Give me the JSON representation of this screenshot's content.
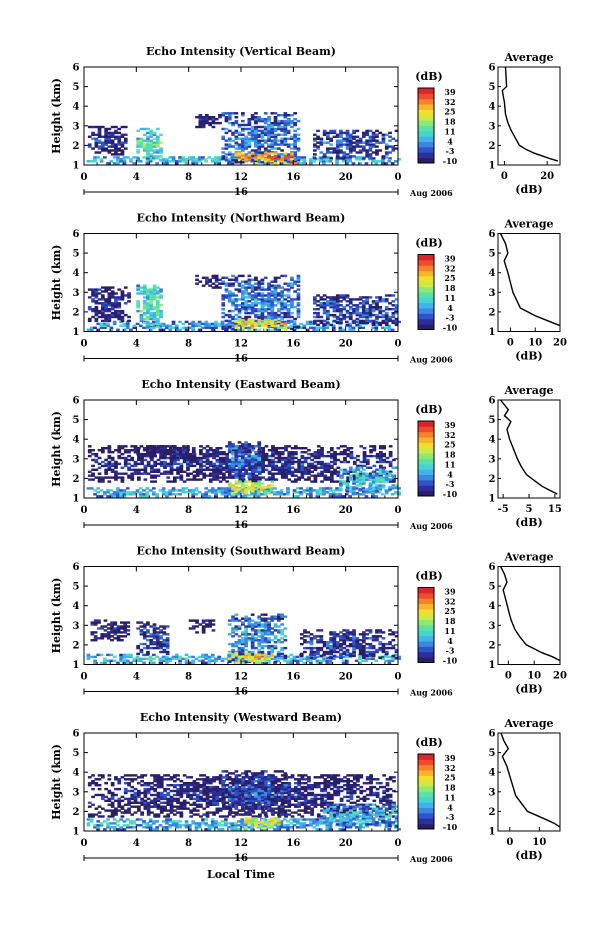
{
  "figure": {
    "date_label": "Aug 2006",
    "day_label": "16",
    "xlabel_bottom": "Local Time",
    "units_label": "(dB)"
  },
  "colorbar": {
    "ticks": [
      39,
      32,
      25,
      18,
      11,
      4,
      -3,
      -10
    ],
    "colors": [
      "#2a1f66",
      "#2b2f9e",
      "#2f53c8",
      "#3b86e0",
      "#3fb4ea",
      "#46d4d2",
      "#5be0a8",
      "#8fe872",
      "#c9ea48",
      "#f2df2b",
      "#f8b42a",
      "#f6832c",
      "#ee4b2f",
      "#d8262a"
    ]
  },
  "chart_data": [
    {
      "type": "heatmap",
      "title": "Echo Intensity (Vertical Beam)",
      "ylabel": "Height (km)",
      "xticks": [
        "0",
        "4",
        "8",
        "12",
        "16",
        "20",
        "0"
      ],
      "xlim": [
        0,
        24
      ],
      "ylim": [
        1,
        6
      ],
      "yticks": [
        1,
        2,
        3,
        4,
        5,
        6
      ],
      "clim": [
        -10,
        39
      ],
      "blobs": [
        {
          "t0": 0.2,
          "t1": 24,
          "h0": 1.05,
          "h1": 1.45,
          "v": 8
        },
        {
          "t0": 0.3,
          "t1": 3.2,
          "h0": 1.5,
          "h1": 3.0,
          "v": -5
        },
        {
          "t0": 4.0,
          "t1": 5.8,
          "h0": 1.2,
          "h1": 2.9,
          "v": 12
        },
        {
          "t0": 10.5,
          "t1": 16.5,
          "h0": 1.1,
          "h1": 3.7,
          "v": 2
        },
        {
          "t0": 11.5,
          "t1": 16.2,
          "h0": 1.05,
          "h1": 1.6,
          "v": 30
        },
        {
          "t0": 17.5,
          "t1": 23.8,
          "h0": 1.3,
          "h1": 2.8,
          "v": -2
        },
        {
          "t0": 8.5,
          "t1": 10.3,
          "h0": 2.9,
          "h1": 3.6,
          "v": -6
        }
      ],
      "profile": {
        "title": "Average",
        "xlabel": "(dB)",
        "xlim": [
          -3,
          26
        ],
        "xticks": [
          0,
          20
        ],
        "ylim": [
          1,
          6
        ],
        "x": [
          0.5,
          1.0,
          -1.0,
          0.0,
          0.5,
          1.5,
          3.0,
          5.0,
          7.0,
          10.0,
          14.0,
          18.0,
          22.0,
          25.0
        ],
        "y": [
          6.0,
          5.0,
          4.8,
          4.2,
          3.6,
          3.2,
          2.8,
          2.4,
          2.0,
          1.8,
          1.6,
          1.45,
          1.3,
          1.2
        ]
      }
    },
    {
      "type": "heatmap",
      "title": "Echo Intensity (Northward Beam)",
      "ylabel": "Height (km)",
      "xticks": [
        "0",
        "4",
        "8",
        "12",
        "16",
        "20",
        "0"
      ],
      "xlim": [
        0,
        24
      ],
      "ylim": [
        1,
        6
      ],
      "yticks": [
        1,
        2,
        3,
        4,
        5,
        6
      ],
      "clim": [
        -10,
        39
      ],
      "blobs": [
        {
          "t0": 0.2,
          "t1": 24,
          "h0": 1.05,
          "h1": 1.5,
          "v": 6
        },
        {
          "t0": 0.3,
          "t1": 3.5,
          "h0": 1.5,
          "h1": 3.3,
          "v": -5
        },
        {
          "t0": 4.0,
          "t1": 6.0,
          "h0": 1.2,
          "h1": 3.4,
          "v": 12
        },
        {
          "t0": 10.5,
          "t1": 16.5,
          "h0": 1.1,
          "h1": 3.9,
          "v": 2
        },
        {
          "t0": 11.5,
          "t1": 15.5,
          "h0": 1.05,
          "h1": 1.6,
          "v": 24
        },
        {
          "t0": 17.5,
          "t1": 23.8,
          "h0": 1.3,
          "h1": 2.9,
          "v": -2
        },
        {
          "t0": 8.5,
          "t1": 10.5,
          "h0": 3.2,
          "h1": 3.9,
          "v": -7
        }
      ],
      "profile": {
        "title": "Average",
        "xlabel": "(dB)",
        "xlim": [
          -5,
          20
        ],
        "xticks": [
          0,
          10,
          20
        ],
        "ylim": [
          1,
          6
        ],
        "x": [
          -4.0,
          -2.0,
          -1.0,
          -2.5,
          -1.0,
          0.0,
          1.0,
          2.5,
          4.0,
          7.0,
          10.0,
          14.0,
          18.0,
          20.0
        ],
        "y": [
          6.0,
          5.5,
          5.0,
          4.6,
          4.0,
          3.5,
          3.0,
          2.6,
          2.2,
          2.0,
          1.8,
          1.6,
          1.4,
          1.3
        ]
      }
    },
    {
      "type": "heatmap",
      "title": "Echo Intensity (Eastward Beam)",
      "ylabel": "Height (km)",
      "xticks": [
        "0",
        "4",
        "8",
        "12",
        "16",
        "20",
        "0"
      ],
      "xlim": [
        0,
        24
      ],
      "ylim": [
        1,
        6
      ],
      "yticks": [
        1,
        2,
        3,
        4,
        5,
        6
      ],
      "clim": [
        -10,
        39
      ],
      "blobs": [
        {
          "t0": 0.2,
          "t1": 24,
          "h0": 1.05,
          "h1": 1.5,
          "v": 8
        },
        {
          "t0": 0.3,
          "t1": 23.8,
          "h0": 1.8,
          "h1": 3.7,
          "v": -6
        },
        {
          "t0": 11.0,
          "t1": 14.5,
          "h0": 1.1,
          "h1": 1.9,
          "v": 22
        },
        {
          "t0": 11.0,
          "t1": 13.5,
          "h0": 2.0,
          "h1": 3.9,
          "v": 2
        },
        {
          "t0": 19.5,
          "t1": 23.8,
          "h0": 1.2,
          "h1": 2.6,
          "v": 8
        },
        {
          "t0": 4.0,
          "t1": 8.5,
          "h0": 3.0,
          "h1": 3.7,
          "v": -8
        }
      ],
      "profile": {
        "title": "Average",
        "xlabel": "(dB)",
        "xlim": [
          -7,
          17
        ],
        "xticks": [
          -5,
          5,
          15
        ],
        "ylim": [
          1,
          6
        ],
        "x": [
          -6.0,
          -3.0,
          -4.5,
          -2.0,
          -3.5,
          -2.5,
          -1.0,
          0.5,
          2.0,
          4.0,
          7.0,
          10.0,
          13.0,
          16.0
        ],
        "y": [
          6.0,
          5.5,
          5.2,
          4.9,
          4.5,
          4.0,
          3.5,
          3.0,
          2.6,
          2.2,
          1.9,
          1.6,
          1.4,
          1.2
        ]
      }
    },
    {
      "type": "heatmap",
      "title": "Echo Intensity (Southward Beam)",
      "ylabel": "Height (km)",
      "xticks": [
        "0",
        "4",
        "8",
        "12",
        "16",
        "20",
        "0"
      ],
      "xlim": [
        0,
        24
      ],
      "ylim": [
        1,
        6
      ],
      "yticks": [
        1,
        2,
        3,
        4,
        5,
        6
      ],
      "clim": [
        -10,
        39
      ],
      "blobs": [
        {
          "t0": 0.2,
          "t1": 24,
          "h0": 1.05,
          "h1": 1.5,
          "v": 8
        },
        {
          "t0": 0.5,
          "t1": 3.5,
          "h0": 2.2,
          "h1": 3.3,
          "v": -6
        },
        {
          "t0": 4.0,
          "t1": 6.5,
          "h0": 1.5,
          "h1": 3.2,
          "v": -2
        },
        {
          "t0": 11.0,
          "t1": 15.5,
          "h0": 1.1,
          "h1": 3.6,
          "v": 4
        },
        {
          "t0": 11.0,
          "t1": 14.5,
          "h0": 1.05,
          "h1": 1.6,
          "v": 24
        },
        {
          "t0": 16.5,
          "t1": 23.8,
          "h0": 1.3,
          "h1": 2.8,
          "v": -3
        },
        {
          "t0": 8.0,
          "t1": 10.0,
          "h0": 2.6,
          "h1": 3.3,
          "v": -7
        }
      ],
      "profile": {
        "title": "Average",
        "xlabel": "(dB)",
        "xlim": [
          -4,
          20
        ],
        "xticks": [
          0,
          10,
          20
        ],
        "ylim": [
          1,
          6
        ],
        "x": [
          -3.0,
          -1.5,
          -0.5,
          -2.0,
          -1.0,
          0.0,
          1.0,
          2.5,
          4.5,
          7.0,
          10.0,
          13.0,
          17.0,
          20.0
        ],
        "y": [
          6.0,
          5.6,
          5.2,
          4.8,
          4.3,
          3.8,
          3.3,
          2.8,
          2.4,
          2.0,
          1.8,
          1.6,
          1.4,
          1.2
        ]
      }
    },
    {
      "type": "heatmap",
      "title": "Echo Intensity (Westward Beam)",
      "ylabel": "Height (km)",
      "xticks": [
        "0",
        "4",
        "8",
        "12",
        "16",
        "20",
        "0"
      ],
      "xlim": [
        0,
        24
      ],
      "ylim": [
        1,
        6
      ],
      "yticks": [
        1,
        2,
        3,
        4,
        5,
        6
      ],
      "clim": [
        -10,
        39
      ],
      "blobs": [
        {
          "t0": 0.2,
          "t1": 24,
          "h0": 1.05,
          "h1": 1.6,
          "v": 8
        },
        {
          "t0": 0.3,
          "t1": 23.8,
          "h0": 1.7,
          "h1": 3.9,
          "v": -6
        },
        {
          "t0": 10.5,
          "t1": 15.5,
          "h0": 1.8,
          "h1": 4.1,
          "v": -2
        },
        {
          "t0": 12.0,
          "t1": 15.0,
          "h0": 1.1,
          "h1": 1.7,
          "v": 22
        },
        {
          "t0": 18.0,
          "t1": 23.8,
          "h0": 1.2,
          "h1": 2.4,
          "v": 6
        }
      ],
      "profile": {
        "title": "Average",
        "xlabel": "(dB)",
        "xlim": [
          -4,
          17
        ],
        "xticks": [
          0,
          10
        ],
        "ylim": [
          1,
          6
        ],
        "x": [
          -3.0,
          -2.0,
          -0.5,
          -2.5,
          -1.0,
          0.0,
          1.0,
          2.0,
          4.0,
          6.0,
          9.0,
          12.0,
          15.0,
          17.0
        ],
        "y": [
          6.0,
          5.6,
          5.2,
          4.8,
          4.3,
          3.8,
          3.3,
          2.8,
          2.4,
          2.0,
          1.8,
          1.6,
          1.4,
          1.2
        ]
      }
    }
  ]
}
